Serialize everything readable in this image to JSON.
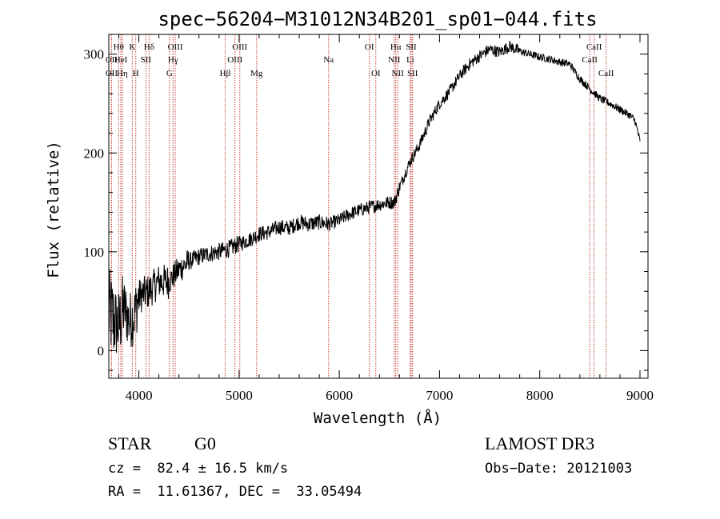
{
  "chart_data": {
    "type": "line",
    "title": "spec−56204−M31012N34B201_sp01−044.fits",
    "xlabel": "Wavelength (Å)",
    "ylabel": "Flux (relative)",
    "xlim": [
      3700,
      9080
    ],
    "ylim": [
      -28,
      320
    ],
    "xticks": [
      4000,
      5000,
      6000,
      7000,
      8000,
      9000
    ],
    "yticks": [
      0,
      100,
      200,
      300
    ],
    "series": [
      {
        "name": "flux",
        "x": [
          3700,
          3750,
          3800,
          3850,
          3900,
          3950,
          4000,
          4100,
          4200,
          4300,
          4400,
          4500,
          4600,
          4700,
          4800,
          4900,
          5000,
          5100,
          5200,
          5300,
          5400,
          5500,
          5600,
          5700,
          5800,
          5900,
          6000,
          6100,
          6200,
          6300,
          6400,
          6500,
          6550,
          6600,
          6700,
          6800,
          6900,
          7000,
          7100,
          7200,
          7300,
          7400,
          7500,
          7600,
          7700,
          7800,
          7900,
          8000,
          8100,
          8200,
          8300,
          8400,
          8500,
          8600,
          8700,
          8800,
          8900,
          8950,
          9000
        ],
        "y": [
          40,
          30,
          25,
          45,
          30,
          35,
          55,
          60,
          70,
          70,
          82,
          90,
          95,
          98,
          100,
          103,
          108,
          112,
          118,
          120,
          125,
          124,
          130,
          128,
          130,
          128,
          132,
          138,
          142,
          145,
          148,
          150,
          150,
          165,
          190,
          208,
          232,
          250,
          262,
          278,
          290,
          298,
          305,
          302,
          308,
          303,
          300,
          297,
          295,
          292,
          290,
          275,
          265,
          255,
          250,
          244,
          238,
          233,
          212
        ],
        "noise": [
          [
            3700,
            3760,
            45
          ],
          [
            3760,
            3850,
            38
          ],
          [
            3850,
            4000,
            30
          ],
          [
            4000,
            4300,
            18
          ],
          [
            4300,
            4500,
            14
          ],
          [
            4500,
            5000,
            9
          ],
          [
            5000,
            5900,
            8
          ],
          [
            5900,
            6600,
            7
          ],
          [
            6600,
            7000,
            6
          ],
          [
            7000,
            7800,
            6
          ],
          [
            7800,
            8400,
            4
          ],
          [
            8400,
            9000,
            4
          ],
          [
            9000,
            9080,
            0
          ]
        ],
        "points": 1400
      }
    ],
    "line_markers": [
      {
        "label": "Hθ",
        "x": 3798,
        "row": 0
      },
      {
        "label": "OII",
        "x": 3727,
        "row": 1
      },
      {
        "label": "HeI",
        "x": 3820,
        "row": 1
      },
      {
        "label": "OII",
        "x": 3727,
        "row": 2
      },
      {
        "label": "Hη",
        "x": 3835,
        "row": 2
      },
      {
        "label": "K",
        "x": 3934,
        "row": 0
      },
      {
        "label": "SII",
        "x": 4070,
        "row": 1
      },
      {
        "label": "H",
        "x": 3969,
        "row": 2
      },
      {
        "label": "Hδ",
        "x": 4102,
        "row": 0
      },
      {
        "label": "OIII",
        "x": 4363,
        "row": 0
      },
      {
        "label": "Hγ",
        "x": 4341,
        "row": 1
      },
      {
        "label": "G",
        "x": 4305,
        "row": 2
      },
      {
        "label": "OIII",
        "x": 5007,
        "row": 0
      },
      {
        "label": "OIII",
        "x": 4959,
        "row": 1
      },
      {
        "label": "Hβ",
        "x": 4861,
        "row": 2
      },
      {
        "label": "Mg",
        "x": 5175,
        "row": 2
      },
      {
        "label": "Na",
        "x": 5893,
        "row": 1
      },
      {
        "label": "OI",
        "x": 6300,
        "row": 0
      },
      {
        "label": "OI",
        "x": 6364,
        "row": 2
      },
      {
        "label": "Hα",
        "x": 6563,
        "row": 0
      },
      {
        "label": "NII",
        "x": 6548,
        "row": 1
      },
      {
        "label": "NII",
        "x": 6583,
        "row": 2
      },
      {
        "label": "SII",
        "x": 6717,
        "row": 0
      },
      {
        "label": "Li",
        "x": 6708,
        "row": 1
      },
      {
        "label": "SII",
        "x": 6731,
        "row": 2
      },
      {
        "label": "CaII",
        "x": 8542,
        "row": 0
      },
      {
        "label": "CaII",
        "x": 8498,
        "row": 1
      },
      {
        "label": "CaII",
        "x": 8662,
        "row": 2
      }
    ]
  },
  "info": {
    "object_class": "STAR",
    "subclass": "G0",
    "survey": "LAMOST DR3",
    "redshift_line": "cz =  82.4 ± 16.5 km/s",
    "obs_date": "Obs−Date: 20121003",
    "coords": "RA =  11.61367, DEC =  33.05494"
  },
  "colors": {
    "marker": "#c8413a",
    "line": "#000000"
  }
}
